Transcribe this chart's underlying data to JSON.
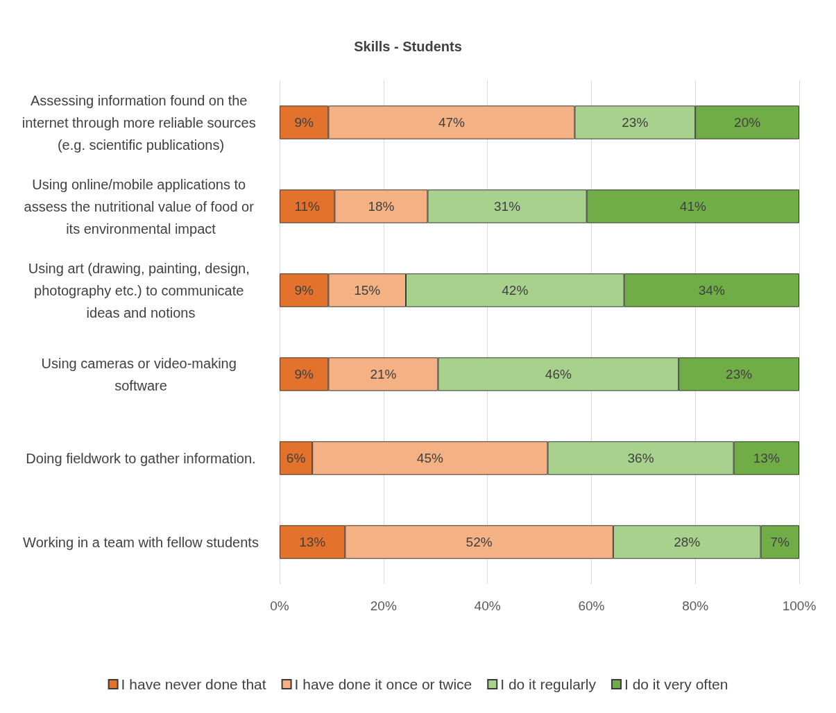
{
  "chart_data": {
    "type": "bar",
    "title": "Skills - Students",
    "orientation": "horizontal",
    "stacked": true,
    "categories": [
      "Assessing information found on the internet through more reliable sources (e.g. scientific publications)",
      "Using online/mobile applications to assess the nutritional value of food or its environmental impact",
      "Using art (drawing, painting, design, photography etc.) to communicate ideas and notions",
      "Using cameras or video-making software",
      "Doing fieldwork to gather information.",
      "Working in a team with fellow students"
    ],
    "series": [
      {
        "name": "I have never done that",
        "color": "#e2722c",
        "values": [
          9.4,
          10.6,
          9.4,
          9.4,
          6.3,
          12.6
        ],
        "value_labels": [
          "9%",
          "11%",
          "9%",
          "9%",
          "6%",
          "13%"
        ]
      },
      {
        "name": "I have done it once or twice",
        "color": "#f4b183",
        "values": [
          47.4,
          17.9,
          14.9,
          21.1,
          45.3,
          51.6
        ],
        "value_labels": [
          "47%",
          "18%",
          "15%",
          "21%",
          "45%",
          "52%"
        ]
      },
      {
        "name": "I do it regularly",
        "color": "#a9d18e",
        "values": [
          23.2,
          30.6,
          42.0,
          46.3,
          35.8,
          28.4
        ],
        "value_labels": [
          "23%",
          "31%",
          "42%",
          "46%",
          "36%",
          "28%"
        ]
      },
      {
        "name": "I do it very often",
        "color": "#70ad47",
        "values": [
          20.0,
          40.9,
          33.7,
          23.2,
          12.6,
          7.4
        ],
        "value_labels": [
          "20%",
          "41%",
          "34%",
          "23%",
          "13%",
          "7%"
        ]
      }
    ],
    "xlim": [
      0,
      100
    ],
    "xticks": [
      {
        "value": 0,
        "label": "0%"
      },
      {
        "value": 20,
        "label": "20%"
      },
      {
        "value": 40,
        "label": "40%"
      },
      {
        "value": 60,
        "label": "60%"
      },
      {
        "value": 80,
        "label": "80%"
      },
      {
        "value": 100,
        "label": "100%"
      }
    ],
    "grid": "x",
    "legend": "bottom"
  }
}
